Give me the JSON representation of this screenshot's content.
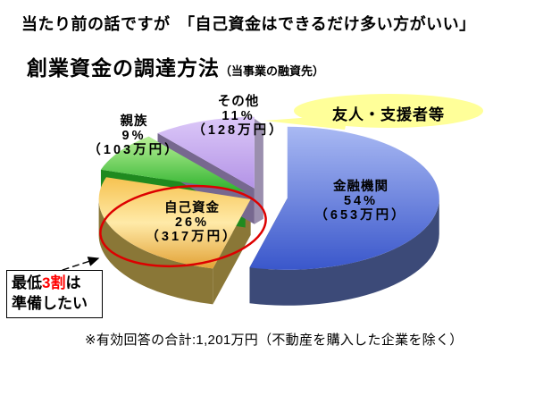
{
  "page": {
    "top_message": "当たり前の話ですが　「自己資金はできるだけ多い方がいい」",
    "title": "創業資金の調達方法",
    "title_suffix": "（当事業の融資先）",
    "footnote": "※有効回答の合計:1,201万円（不動産を購入した企業を除く）"
  },
  "callout": {
    "label": "友人・支援者等",
    "fill": "#ffff99"
  },
  "emphasis": {
    "color": "#dd0000"
  },
  "annotation_box": {
    "line1_pre": "最低",
    "line1_em": "3割",
    "line1_post": "は",
    "line2": "準備したい",
    "em_color": "#ff0000"
  },
  "chart_data": {
    "type": "pie",
    "title": "創業資金の調達方法（当事業の融資先）",
    "start_angle_deg": 0,
    "direction": "clockwise",
    "total_label": "1,201万円",
    "slices": [
      {
        "label": "金融機関",
        "pct": 54,
        "pct_label": "54%",
        "amount_label": "（653万円）",
        "colors": {
          "top": [
            "#a9b9f3",
            "#3a57cb"
          ],
          "side": "#3c4a78"
        }
      },
      {
        "label": "自己資金",
        "pct": 26,
        "pct_label": "26%",
        "amount_label": "（317万円）",
        "colors": {
          "top": [
            "#f6c250",
            "#ffeaa8",
            "#e2a236"
          ],
          "side": "#8a7737"
        }
      },
      {
        "label": "親族",
        "pct": 9,
        "pct_label": "9%",
        "amount_label": "（103万円）",
        "colors": {
          "top": [
            "#b9ef97",
            "#2db32d"
          ],
          "side": "#1f8a1f"
        }
      },
      {
        "label": "その他",
        "pct": 11,
        "pct_label": "11%",
        "amount_label": "（128万円）",
        "colors": {
          "top": [
            "#dcc8f8",
            "#b393e6"
          ],
          "side": "#77688f",
          "sliver": "#9b8fae"
        }
      }
    ],
    "note": "※有効回答の合計:1,201万円（不動産を購入した企業を除く）",
    "annotations": [
      "友人・支援者等",
      "最低3割は準備したい"
    ]
  }
}
